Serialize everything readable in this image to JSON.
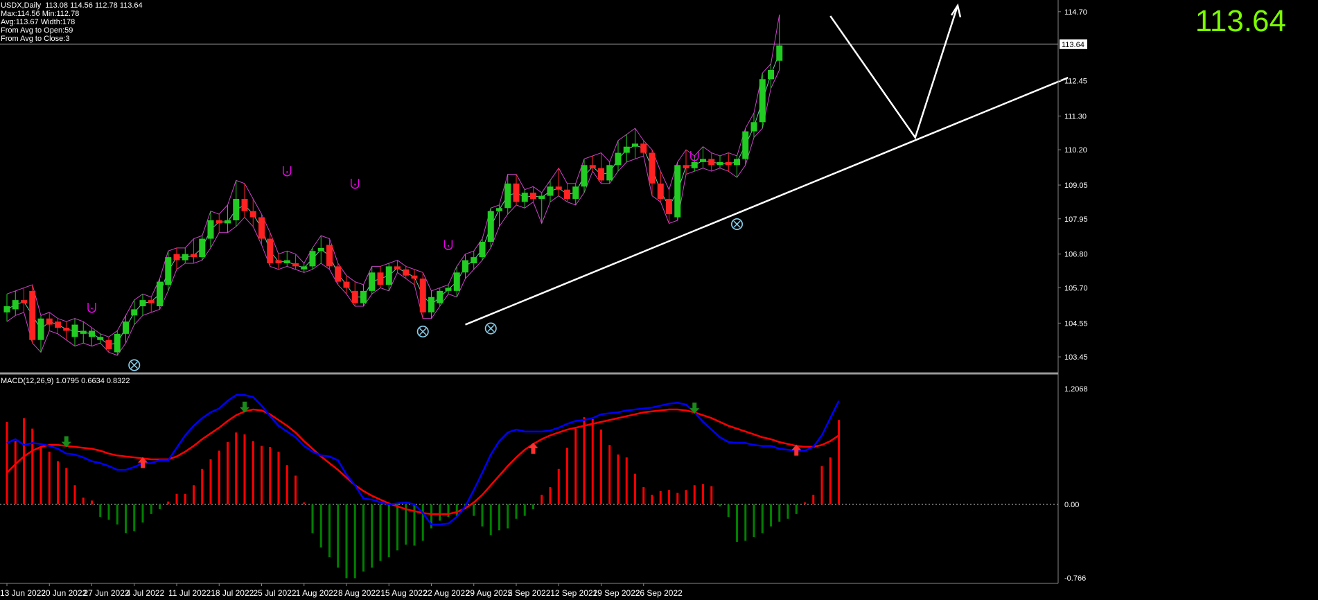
{
  "header": {
    "symbol_line": "USDX,Daily  113.08 114.56 112.78 113.64",
    "max_min": "Max:114.56 Min:112.78",
    "avg_width": "Avg:113.67 Width:178",
    "avg_open": "From Avg to Open:59",
    "avg_close": "From Avg to Close:3"
  },
  "current_price": "113.64",
  "price_axis_labels": [
    "114.70",
    "113.64",
    "112.45",
    "111.30",
    "110.20",
    "109.05",
    "107.95",
    "106.80",
    "105.70",
    "104.55",
    "103.45"
  ],
  "macd_label": "MACD(12,26,9) 1.0795 0.6634 0.8322",
  "macd_axis_labels": [
    "1.2068",
    "0.00",
    "-0.766"
  ],
  "date_labels": [
    "13 Jun 2022",
    "20 Jun 2022",
    "27 Jun 2022",
    "4 Jul 2022",
    "11 Jul 2022",
    "18 Jul 2022",
    "25 Jul 2022",
    "1 Aug 2022",
    "8 Aug 2022",
    "15 Aug 2022",
    "22 Aug 2022",
    "29 Aug 2022",
    "5 Sep 2022",
    "12 Sep 2022",
    "19 Sep 2022",
    "26 Sep 2022"
  ],
  "colors": {
    "bull": "#22cc22",
    "bear": "#ff2222",
    "price_fill": "#ffffff",
    "fractal_up": "#ee00ee",
    "fractal_down": "#87ceeb",
    "macd_main": "#0000ff",
    "macd_signal": "#ff0000",
    "hist_pos": "#ff0000",
    "hist_neg": "#008000"
  },
  "chart_data": {
    "type": "candlestick",
    "instrument": "USDX",
    "timeframe": "Daily",
    "price_range": [
      103.0,
      114.9
    ],
    "candles": [
      {
        "o": 104.9,
        "h": 105.5,
        "l": 104.6,
        "c": 105.1
      },
      {
        "o": 105.0,
        "h": 105.6,
        "l": 104.8,
        "c": 105.3
      },
      {
        "o": 105.3,
        "h": 105.7,
        "l": 104.9,
        "c": 105.2
      },
      {
        "o": 105.6,
        "h": 105.8,
        "l": 103.9,
        "c": 104.0
      },
      {
        "o": 104.0,
        "h": 104.8,
        "l": 103.6,
        "c": 104.7
      },
      {
        "o": 104.7,
        "h": 104.9,
        "l": 104.3,
        "c": 104.5
      },
      {
        "o": 104.6,
        "h": 104.7,
        "l": 104.2,
        "c": 104.4
      },
      {
        "o": 104.4,
        "h": 104.6,
        "l": 104.0,
        "c": 104.3
      },
      {
        "o": 104.1,
        "h": 104.7,
        "l": 103.8,
        "c": 104.5
      },
      {
        "o": 104.2,
        "h": 104.6,
        "l": 103.9,
        "c": 104.3
      },
      {
        "o": 104.1,
        "h": 104.4,
        "l": 103.8,
        "c": 104.3
      },
      {
        "o": 104.0,
        "h": 104.2,
        "l": 103.9,
        "c": 104.1
      },
      {
        "o": 104.0,
        "h": 104.1,
        "l": 103.6,
        "c": 103.7
      },
      {
        "o": 103.6,
        "h": 104.3,
        "l": 103.5,
        "c": 104.2
      },
      {
        "o": 104.2,
        "h": 104.8,
        "l": 103.9,
        "c": 104.6
      },
      {
        "o": 104.8,
        "h": 105.3,
        "l": 104.5,
        "c": 105.0
      },
      {
        "o": 105.1,
        "h": 105.5,
        "l": 104.8,
        "c": 105.3
      },
      {
        "o": 105.3,
        "h": 105.4,
        "l": 104.9,
        "c": 105.2
      },
      {
        "o": 105.1,
        "h": 106.0,
        "l": 105.0,
        "c": 105.9
      },
      {
        "o": 105.8,
        "h": 106.9,
        "l": 105.6,
        "c": 106.7
      },
      {
        "o": 106.8,
        "h": 107.0,
        "l": 106.3,
        "c": 106.6
      },
      {
        "o": 106.6,
        "h": 107.0,
        "l": 106.5,
        "c": 106.8
      },
      {
        "o": 106.8,
        "h": 107.3,
        "l": 106.5,
        "c": 106.7
      },
      {
        "o": 106.7,
        "h": 107.4,
        "l": 106.6,
        "c": 107.3
      },
      {
        "o": 107.3,
        "h": 108.2,
        "l": 107.0,
        "c": 107.9
      },
      {
        "o": 107.9,
        "h": 108.1,
        "l": 107.5,
        "c": 107.8
      },
      {
        "o": 107.8,
        "h": 108.4,
        "l": 107.5,
        "c": 107.9
      },
      {
        "o": 107.9,
        "h": 109.2,
        "l": 107.7,
        "c": 108.6
      },
      {
        "o": 108.6,
        "h": 109.1,
        "l": 108.0,
        "c": 108.2
      },
      {
        "o": 108.2,
        "h": 108.6,
        "l": 107.7,
        "c": 108.0
      },
      {
        "o": 108.0,
        "h": 108.1,
        "l": 107.1,
        "c": 107.3
      },
      {
        "o": 107.3,
        "h": 107.5,
        "l": 106.4,
        "c": 106.5
      },
      {
        "o": 106.6,
        "h": 106.8,
        "l": 106.3,
        "c": 106.5
      },
      {
        "o": 106.5,
        "h": 106.9,
        "l": 106.4,
        "c": 106.6
      },
      {
        "o": 106.5,
        "h": 106.8,
        "l": 106.3,
        "c": 106.4
      },
      {
        "o": 106.3,
        "h": 106.5,
        "l": 106.2,
        "c": 106.4
      },
      {
        "o": 106.4,
        "h": 107.0,
        "l": 106.3,
        "c": 106.9
      },
      {
        "o": 106.9,
        "h": 107.4,
        "l": 106.5,
        "c": 107.0
      },
      {
        "o": 107.1,
        "h": 107.3,
        "l": 106.3,
        "c": 106.4
      },
      {
        "o": 106.4,
        "h": 106.5,
        "l": 105.8,
        "c": 105.9
      },
      {
        "o": 105.9,
        "h": 106.1,
        "l": 105.5,
        "c": 105.7
      },
      {
        "o": 105.6,
        "h": 105.9,
        "l": 105.1,
        "c": 105.2
      },
      {
        "o": 105.2,
        "h": 105.8,
        "l": 105.1,
        "c": 105.6
      },
      {
        "o": 105.6,
        "h": 106.4,
        "l": 105.5,
        "c": 106.2
      },
      {
        "o": 106.2,
        "h": 106.4,
        "l": 105.7,
        "c": 105.8
      },
      {
        "o": 105.8,
        "h": 106.5,
        "l": 105.6,
        "c": 106.4
      },
      {
        "o": 106.4,
        "h": 106.6,
        "l": 106.2,
        "c": 106.3
      },
      {
        "o": 106.3,
        "h": 106.4,
        "l": 106.0,
        "c": 106.1
      },
      {
        "o": 106.1,
        "h": 106.3,
        "l": 105.8,
        "c": 106.0
      },
      {
        "o": 106.0,
        "h": 106.2,
        "l": 104.7,
        "c": 104.9
      },
      {
        "o": 104.9,
        "h": 105.6,
        "l": 104.7,
        "c": 105.4
      },
      {
        "o": 105.2,
        "h": 105.7,
        "l": 105.1,
        "c": 105.6
      },
      {
        "o": 105.6,
        "h": 105.8,
        "l": 105.5,
        "c": 105.7
      },
      {
        "o": 105.6,
        "h": 106.4,
        "l": 105.4,
        "c": 106.2
      },
      {
        "o": 106.2,
        "h": 106.8,
        "l": 106.0,
        "c": 106.6
      },
      {
        "o": 106.5,
        "h": 106.9,
        "l": 106.3,
        "c": 106.7
      },
      {
        "o": 106.7,
        "h": 107.3,
        "l": 106.6,
        "c": 107.2
      },
      {
        "o": 107.2,
        "h": 108.3,
        "l": 107.0,
        "c": 108.2
      },
      {
        "o": 108.2,
        "h": 108.4,
        "l": 107.7,
        "c": 108.3
      },
      {
        "o": 108.3,
        "h": 109.4,
        "l": 108.1,
        "c": 109.1
      },
      {
        "o": 109.1,
        "h": 109.4,
        "l": 108.4,
        "c": 108.5
      },
      {
        "o": 108.5,
        "h": 108.9,
        "l": 108.3,
        "c": 108.8
      },
      {
        "o": 108.8,
        "h": 109.0,
        "l": 108.5,
        "c": 108.6
      },
      {
        "o": 108.6,
        "h": 108.8,
        "l": 107.8,
        "c": 108.7
      },
      {
        "o": 108.7,
        "h": 109.2,
        "l": 108.5,
        "c": 109.0
      },
      {
        "o": 109.0,
        "h": 109.6,
        "l": 108.7,
        "c": 108.9
      },
      {
        "o": 108.9,
        "h": 109.1,
        "l": 108.5,
        "c": 108.6
      },
      {
        "o": 108.6,
        "h": 109.1,
        "l": 108.4,
        "c": 109.0
      },
      {
        "o": 109.0,
        "h": 109.9,
        "l": 108.8,
        "c": 109.7
      },
      {
        "o": 109.7,
        "h": 110.0,
        "l": 109.5,
        "c": 109.6
      },
      {
        "o": 109.6,
        "h": 110.1,
        "l": 109.1,
        "c": 109.2
      },
      {
        "o": 109.2,
        "h": 109.8,
        "l": 109.1,
        "c": 109.7
      },
      {
        "o": 109.7,
        "h": 110.5,
        "l": 109.5,
        "c": 110.1
      },
      {
        "o": 110.1,
        "h": 110.7,
        "l": 109.8,
        "c": 110.3
      },
      {
        "o": 110.3,
        "h": 110.9,
        "l": 109.9,
        "c": 110.4
      },
      {
        "o": 110.4,
        "h": 110.5,
        "l": 110.0,
        "c": 110.1
      },
      {
        "o": 110.1,
        "h": 110.2,
        "l": 108.7,
        "c": 109.1
      },
      {
        "o": 109.1,
        "h": 109.5,
        "l": 108.5,
        "c": 108.6
      },
      {
        "o": 108.6,
        "h": 108.9,
        "l": 107.8,
        "c": 108.1
      },
      {
        "o": 108.0,
        "h": 109.8,
        "l": 107.9,
        "c": 109.7
      },
      {
        "o": 109.7,
        "h": 110.2,
        "l": 109.4,
        "c": 109.6
      },
      {
        "o": 109.6,
        "h": 110.0,
        "l": 109.5,
        "c": 109.8
      },
      {
        "o": 109.8,
        "h": 110.3,
        "l": 109.6,
        "c": 109.9
      },
      {
        "o": 109.9,
        "h": 110.1,
        "l": 109.5,
        "c": 109.7
      },
      {
        "o": 109.7,
        "h": 110.0,
        "l": 109.6,
        "c": 109.8
      },
      {
        "o": 109.8,
        "h": 110.1,
        "l": 109.5,
        "c": 109.7
      },
      {
        "o": 109.7,
        "h": 110.0,
        "l": 109.3,
        "c": 109.9
      },
      {
        "o": 109.9,
        "h": 110.9,
        "l": 109.7,
        "c": 110.8
      },
      {
        "o": 110.8,
        "h": 111.4,
        "l": 110.6,
        "c": 111.1
      },
      {
        "o": 111.1,
        "h": 112.7,
        "l": 110.9,
        "c": 112.5
      },
      {
        "o": 112.5,
        "h": 113.0,
        "l": 112.2,
        "c": 112.8
      },
      {
        "o": 113.1,
        "h": 114.6,
        "l": 112.8,
        "c": 113.6
      }
    ],
    "fractals_up": [
      [
        10,
        105.05
      ],
      [
        33,
        109.5
      ],
      [
        41,
        109.1
      ],
      [
        52,
        107.1
      ],
      [
        81,
        110.0
      ]
    ],
    "fractals_down": [
      [
        15,
        103.2
      ],
      [
        49,
        104.3
      ],
      [
        57,
        104.4
      ],
      [
        86,
        107.8
      ]
    ],
    "trendline": {
      "from": [
        54,
        104.5
      ],
      "to": [
        125,
        112.55
      ]
    },
    "projection": [
      [
        97,
        114.56
      ],
      [
        107,
        110.6
      ],
      [
        112,
        114.9
      ]
    ],
    "macd": {
      "name": "MACD(12,26,9)",
      "range": [
        -0.766,
        1.2068
      ],
      "histogram": [
        0.86,
        0.66,
        0.9,
        0.79,
        0.6,
        0.55,
        0.45,
        0.38,
        0.2,
        0.07,
        0.04,
        -0.13,
        -0.16,
        -0.21,
        -0.3,
        -0.28,
        -0.19,
        -0.1,
        -0.05,
        0.03,
        0.11,
        0.11,
        0.2,
        0.37,
        0.47,
        0.56,
        0.65,
        0.75,
        0.73,
        0.66,
        0.61,
        0.6,
        0.55,
        0.41,
        0.3,
        0.02,
        -0.3,
        -0.45,
        -0.55,
        -0.66,
        -0.77,
        -0.77,
        -0.7,
        -0.66,
        -0.59,
        -0.55,
        -0.48,
        -0.42,
        -0.43,
        -0.38,
        -0.25,
        -0.17,
        -0.13,
        -0.12,
        -0.05,
        -0.12,
        -0.23,
        -0.32,
        -0.27,
        -0.25,
        -0.15,
        -0.12,
        -0.05,
        0.1,
        0.18,
        0.37,
        0.59,
        0.79,
        0.91,
        0.89,
        0.78,
        0.62,
        0.52,
        0.49,
        0.32,
        0.18,
        0.1,
        0.14,
        0.15,
        0.12,
        0.15,
        0.2,
        0.21,
        0.19,
        -0.02,
        -0.13,
        -0.39,
        -0.38,
        -0.34,
        -0.3,
        -0.23,
        -0.18,
        -0.15,
        -0.1,
        0.02,
        0.1,
        0.4,
        0.49,
        0.88
      ],
      "main": [
        0.64,
        0.68,
        0.62,
        0.64,
        0.63,
        0.61,
        0.58,
        0.53,
        0.52,
        0.49,
        0.45,
        0.43,
        0.4,
        0.36,
        0.36,
        0.39,
        0.43,
        0.43,
        0.46,
        0.46,
        0.59,
        0.72,
        0.82,
        0.9,
        0.96,
        1.0,
        1.08,
        1.14,
        1.14,
        1.12,
        1.03,
        0.92,
        0.82,
        0.76,
        0.7,
        0.61,
        0.55,
        0.51,
        0.5,
        0.46,
        0.31,
        0.2,
        0.06,
        0.05,
        0.02,
        0.0,
        0.01,
        0.02,
        0.0,
        -0.09,
        -0.21,
        -0.21,
        -0.2,
        -0.13,
        -0.02,
        0.15,
        0.33,
        0.52,
        0.66,
        0.75,
        0.78,
        0.76,
        0.76,
        0.76,
        0.77,
        0.8,
        0.84,
        0.87,
        0.88,
        0.9,
        0.94,
        0.95,
        0.96,
        0.98,
        0.99,
        1.0,
        1.01,
        1.03,
        1.05,
        1.06,
        1.04,
        0.96,
        0.86,
        0.78,
        0.7,
        0.65,
        0.64,
        0.64,
        0.62,
        0.61,
        0.61,
        0.58,
        0.57,
        0.56,
        0.56,
        0.6,
        0.72,
        0.9,
        1.08
      ],
      "signal": [
        0.33,
        0.42,
        0.5,
        0.56,
        0.6,
        0.62,
        0.62,
        0.61,
        0.6,
        0.59,
        0.58,
        0.56,
        0.53,
        0.51,
        0.5,
        0.49,
        0.48,
        0.47,
        0.47,
        0.47,
        0.5,
        0.55,
        0.61,
        0.68,
        0.74,
        0.8,
        0.87,
        0.93,
        0.97,
        0.99,
        0.98,
        0.94,
        0.88,
        0.82,
        0.75,
        0.66,
        0.58,
        0.5,
        0.43,
        0.36,
        0.28,
        0.2,
        0.14,
        0.09,
        0.05,
        0.01,
        -0.02,
        -0.05,
        -0.07,
        -0.09,
        -0.1,
        -0.1,
        -0.1,
        -0.08,
        -0.04,
        0.02,
        0.1,
        0.2,
        0.3,
        0.4,
        0.49,
        0.57,
        0.63,
        0.68,
        0.72,
        0.75,
        0.78,
        0.8,
        0.82,
        0.84,
        0.86,
        0.88,
        0.9,
        0.92,
        0.94,
        0.96,
        0.97,
        0.98,
        0.99,
        0.99,
        0.98,
        0.96,
        0.93,
        0.9,
        0.86,
        0.82,
        0.79,
        0.76,
        0.73,
        0.7,
        0.68,
        0.65,
        0.63,
        0.61,
        0.6,
        0.6,
        0.62,
        0.66,
        0.72
      ],
      "cross_down": [
        7,
        28,
        81
      ],
      "cross_up": [
        16,
        62,
        93
      ]
    }
  }
}
